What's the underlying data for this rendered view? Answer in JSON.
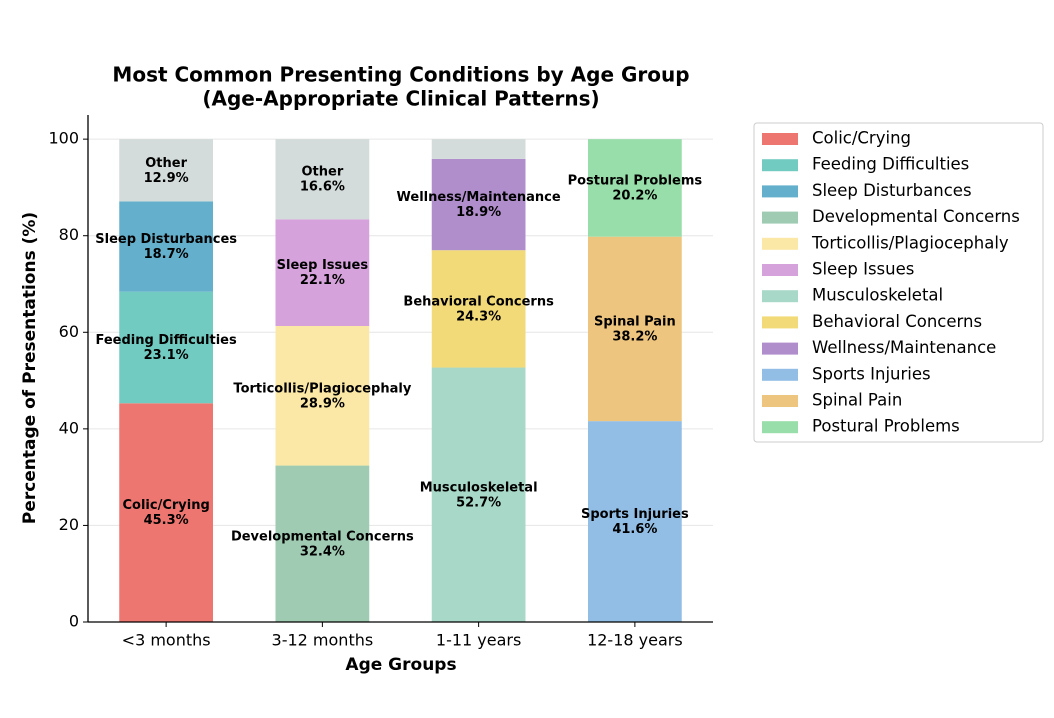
{
  "chart_data": {
    "type": "stacked_bar",
    "title": "Most Common Presenting Conditions by Age Group",
    "subtitle": "(Age-Appropriate Clinical Patterns)",
    "x_label": "Age Groups",
    "y_label": "Percentage of Presentations (%)",
    "categories": [
      "<3 months",
      "3-12 months",
      "1-11 years",
      "12-18 years"
    ],
    "ylim": [
      0,
      105
    ],
    "yticks": [
      0,
      20,
      40,
      60,
      80,
      100
    ],
    "grid": true,
    "legend": "outside-right",
    "series": [
      {
        "name": "Colic/Crying",
        "color": "#ee7670",
        "values": [
          45.3,
          null,
          null,
          null
        ],
        "value_labels": [
          "45.3%",
          null,
          null,
          null
        ]
      },
      {
        "name": "Feeding Difficulties",
        "color": "#72cbc1",
        "values": [
          23.1,
          null,
          null,
          null
        ],
        "value_labels": [
          "23.1%",
          null,
          null,
          null
        ]
      },
      {
        "name": "Sleep Disturbances",
        "color": "#64b0cc",
        "values": [
          18.7,
          null,
          null,
          null
        ],
        "value_labels": [
          "18.7%",
          null,
          null,
          null
        ]
      },
      {
        "name": "Developmental Concerns",
        "color": "#a0cbb3",
        "values": [
          null,
          32.4,
          null,
          null
        ],
        "value_labels": [
          null,
          "32.4%",
          null,
          null
        ]
      },
      {
        "name": "Torticollis/Plagiocephaly",
        "color": "#fbe8a6",
        "values": [
          null,
          28.9,
          null,
          null
        ],
        "value_labels": [
          null,
          "28.9%",
          null,
          null
        ]
      },
      {
        "name": "Sleep Issues",
        "color": "#d6a2dc",
        "values": [
          null,
          22.1,
          null,
          null
        ],
        "value_labels": [
          null,
          "22.1%",
          null,
          null
        ]
      },
      {
        "name": "Musculoskeletal",
        "color": "#a8d8c8",
        "values": [
          null,
          null,
          52.7,
          null
        ],
        "value_labels": [
          null,
          null,
          "52.7%",
          null
        ]
      },
      {
        "name": "Behavioral Concerns",
        "color": "#f2da78",
        "values": [
          null,
          null,
          24.3,
          null
        ],
        "value_labels": [
          null,
          null,
          "24.3%",
          null
        ]
      },
      {
        "name": "Wellness/Maintenance",
        "color": "#b08ecc",
        "values": [
          null,
          null,
          18.9,
          null
        ],
        "value_labels": [
          null,
          null,
          "18.9%",
          null
        ]
      },
      {
        "name": "Sports Injuries",
        "color": "#92bee6",
        "values": [
          null,
          null,
          null,
          41.6
        ],
        "value_labels": [
          null,
          null,
          null,
          "41.6%"
        ]
      },
      {
        "name": "Spinal Pain",
        "color": "#eec57e",
        "values": [
          null,
          null,
          null,
          38.2
        ],
        "value_labels": [
          null,
          null,
          null,
          "38.2%"
        ]
      },
      {
        "name": "Postural Problems",
        "color": "#98deaa",
        "values": [
          null,
          null,
          null,
          20.2
        ],
        "value_labels": [
          null,
          null,
          null,
          "20.2%"
        ]
      }
    ],
    "other": {
      "name": "Other",
      "color": "#d3dcdb",
      "values": [
        12.9,
        16.6,
        4.1,
        null
      ],
      "value_labels": [
        "12.9%",
        "16.6%",
        null,
        null
      ]
    }
  }
}
